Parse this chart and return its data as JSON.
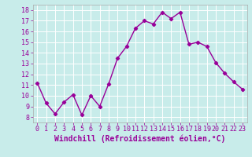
{
  "x": [
    0,
    1,
    2,
    3,
    4,
    5,
    6,
    7,
    8,
    9,
    10,
    11,
    12,
    13,
    14,
    15,
    16,
    17,
    18,
    19,
    20,
    21,
    22,
    23
  ],
  "y": [
    11.2,
    9.3,
    8.3,
    9.4,
    10.1,
    8.2,
    10.0,
    9.0,
    11.1,
    13.5,
    14.6,
    16.3,
    17.0,
    16.7,
    17.8,
    17.2,
    17.8,
    14.8,
    15.0,
    14.6,
    13.1,
    12.1,
    11.3,
    10.6
  ],
  "line_color": "#990099",
  "marker": "D",
  "marker_size": 2.2,
  "linewidth": 1.0,
  "xlabel": "Windchill (Refroidissement éolien,°C)",
  "xlim": [
    -0.5,
    23.5
  ],
  "ylim": [
    7.5,
    18.5
  ],
  "yticks": [
    8,
    9,
    10,
    11,
    12,
    13,
    14,
    15,
    16,
    17,
    18
  ],
  "xticks": [
    0,
    1,
    2,
    3,
    4,
    5,
    6,
    7,
    8,
    9,
    10,
    11,
    12,
    13,
    14,
    15,
    16,
    17,
    18,
    19,
    20,
    21,
    22,
    23
  ],
  "bg_color": "#c8ecea",
  "grid_color": "#ffffff",
  "tick_label_color": "#990099",
  "xlabel_color": "#990099",
  "xlabel_fontsize": 7.0,
  "tick_fontsize": 6.0,
  "spine_color": "#aaaaaa"
}
